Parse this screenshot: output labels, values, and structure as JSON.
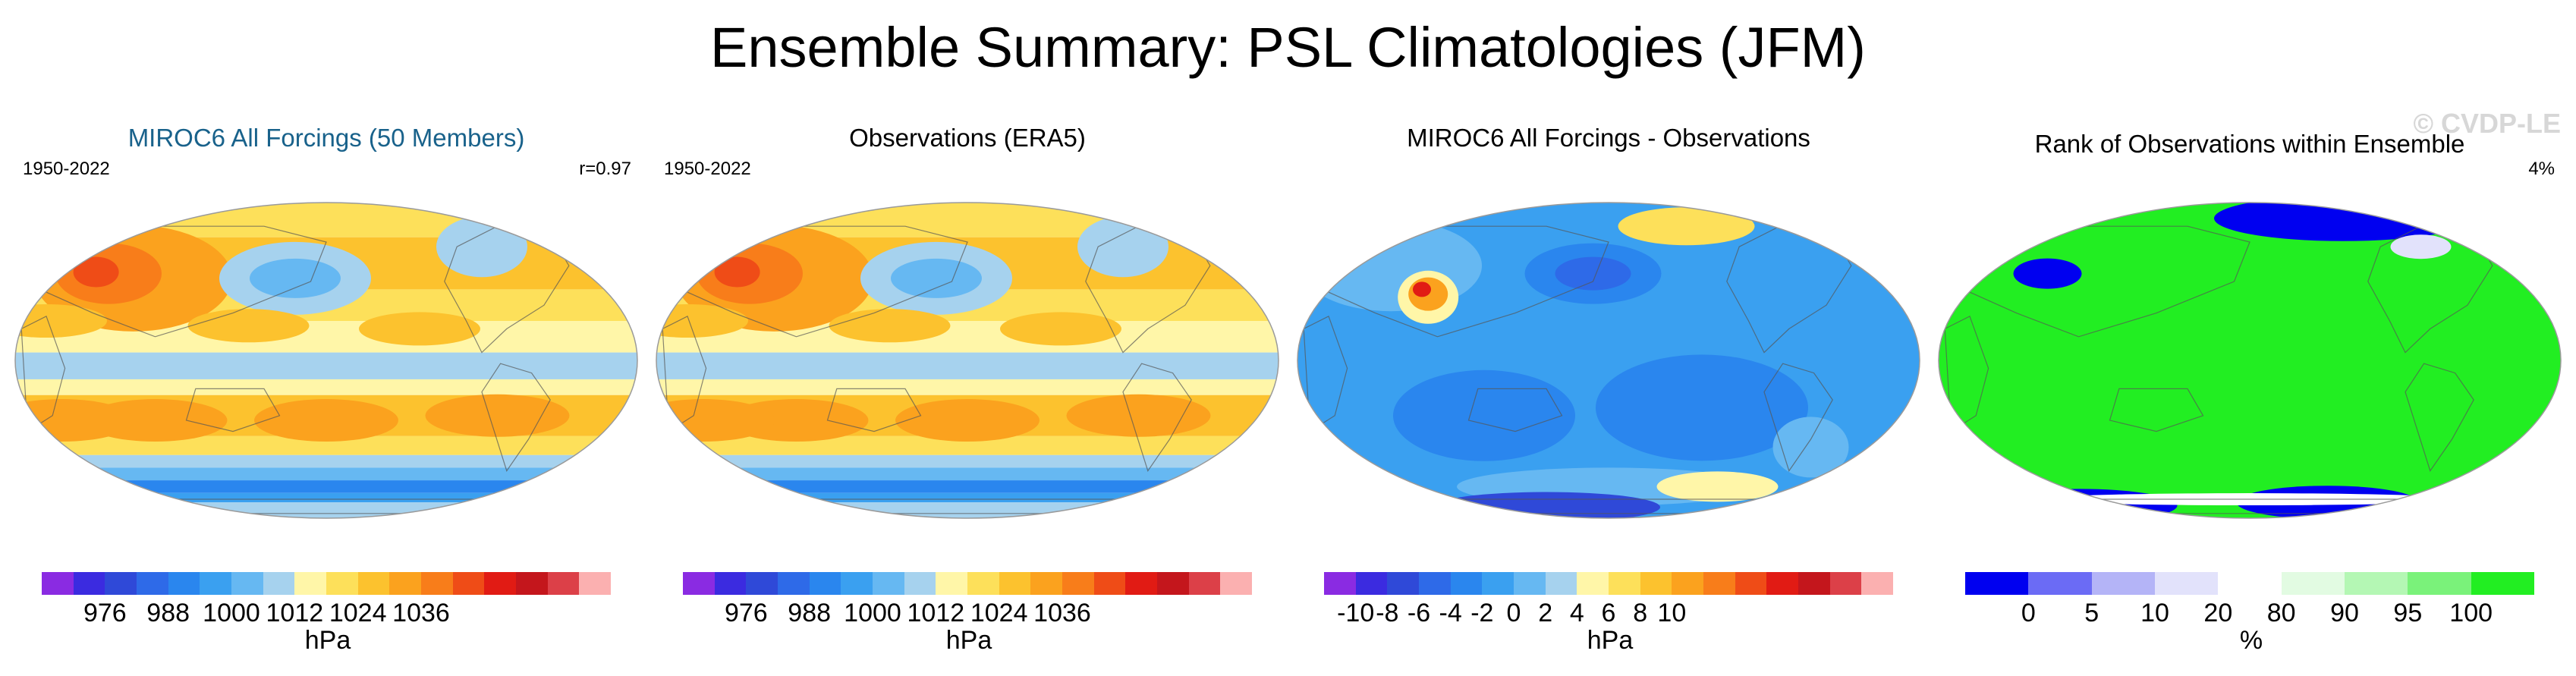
{
  "title": "Ensemble Summary: PSL Climatologies (JFM)",
  "watermark": "© CVDP-LE",
  "panels": [
    {
      "title": "MIROC6 All Forcings (50 Members)",
      "left_label": "1950-2022",
      "right_label": "r=0.97",
      "unit": "hPa",
      "ticks": [
        "976",
        "988",
        "1000",
        "1012",
        "1024",
        "1036"
      ],
      "tick_slots": [
        2,
        4,
        6,
        8,
        10,
        12
      ],
      "colors": [
        "#8a2be2",
        "#3b2be0",
        "#2f49d8",
        "#2e6ae8",
        "#2a86ee",
        "#3aa0f0",
        "#66b8f2",
        "#a6d2ee",
        "#fff6a8",
        "#fde05a",
        "#fcc22e",
        "#fba21e",
        "#f87d1a",
        "#ef4c17",
        "#e11b14",
        "#c4161c",
        "#dc4048",
        "#fbb0b0"
      ],
      "style": "psl"
    },
    {
      "title": "Observations (ERA5)",
      "left_label": "1950-2022",
      "right_label": "",
      "unit": "hPa",
      "ticks": [
        "976",
        "988",
        "1000",
        "1012",
        "1024",
        "1036"
      ],
      "tick_slots": [
        2,
        4,
        6,
        8,
        10,
        12
      ],
      "colors": [
        "#8a2be2",
        "#3b2be0",
        "#2f49d8",
        "#2e6ae8",
        "#2a86ee",
        "#3aa0f0",
        "#66b8f2",
        "#a6d2ee",
        "#fff6a8",
        "#fde05a",
        "#fcc22e",
        "#fba21e",
        "#f87d1a",
        "#ef4c17",
        "#e11b14",
        "#c4161c",
        "#dc4048",
        "#fbb0b0"
      ],
      "style": "psl"
    },
    {
      "title": "MIROC6 All Forcings - Observations",
      "left_label": "",
      "right_label": "",
      "unit": "hPa",
      "ticks": [
        "-10",
        "-8",
        "-6",
        "-4",
        "-2",
        "0",
        "2",
        "4",
        "6",
        "8",
        "10"
      ],
      "tick_slots": [
        1,
        2,
        3,
        4,
        5,
        6,
        7,
        8,
        9,
        10,
        11
      ],
      "colors": [
        "#8a2be2",
        "#3b2be0",
        "#2f49d8",
        "#2e6ae8",
        "#2a86ee",
        "#3aa0f0",
        "#66b8f2",
        "#a6d2ee",
        "#fff6a8",
        "#fde05a",
        "#fcc22e",
        "#fba21e",
        "#f87d1a",
        "#ef4c17",
        "#e11b14",
        "#c4161c",
        "#dc4048",
        "#fbb0b0"
      ],
      "style": "diff"
    },
    {
      "title": "Rank of Observations within Ensemble",
      "left_label": "",
      "right_label": "4%",
      "unit": "%",
      "ticks": [
        "0",
        "5",
        "10",
        "20",
        "80",
        "90",
        "95",
        "100"
      ],
      "tick_slots": [
        1,
        2,
        3,
        4,
        5,
        6,
        7,
        8
      ],
      "colors": [
        "#0000f0",
        "#6b6bf5",
        "#b4b4f7",
        "#e2e2fb",
        "#ffffff",
        "#e2fbe2",
        "#b4f7b4",
        "#7af27a",
        "#22ee22"
      ],
      "style": "rank"
    }
  ]
}
